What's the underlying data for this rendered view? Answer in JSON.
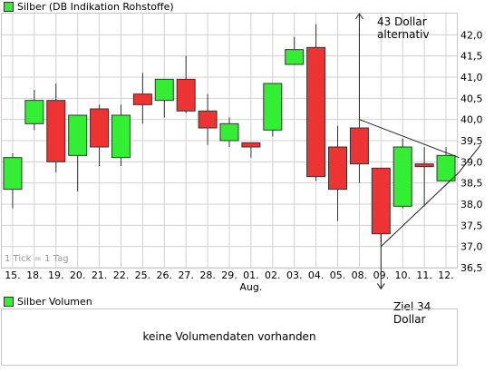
{
  "price_legend": "Silber (DB Indikation Rohstoffe)",
  "volume_legend": "Silber Volumen",
  "volume_message": "keine Volumendaten vorhanden",
  "tick_note": "1 Tick = 1 Tag",
  "annotation_up": [
    "43 Dollar",
    "alternativ"
  ],
  "annotation_down": [
    "Ziel 34",
    "Dollar"
  ],
  "colors": {
    "up": "#33ee33",
    "down": "#ee3333",
    "grid": "#d0d0d0",
    "border": "#c8c8c8"
  },
  "chart_data": {
    "type": "candlestick",
    "title": "Silber (DB Indikation Rohstoffe)",
    "categories": [
      "15.",
      "18.",
      "19.",
      "20.",
      "21.",
      "22.",
      "25.",
      "26.",
      "27.",
      "28.",
      "29.",
      "01.",
      "02.",
      "03.",
      "04.",
      "05.",
      "08.",
      "09.",
      "10.",
      "11.",
      "12."
    ],
    "x_sublabel": {
      "index": 11,
      "text": "Aug."
    },
    "ylim": [
      36.5,
      42.5
    ],
    "yticks": [
      "42,0",
      "41,5",
      "41,0",
      "40,5",
      "40,0",
      "39,5",
      "39,0",
      "38,5",
      "38,0",
      "37,5",
      "37,0",
      "36,5"
    ],
    "grid": true,
    "legend": "top-left",
    "candles": [
      {
        "open": 38.35,
        "close": 39.1,
        "high": 39.2,
        "low": 37.9
      },
      {
        "open": 39.9,
        "close": 40.45,
        "high": 40.7,
        "low": 39.75
      },
      {
        "open": 40.45,
        "close": 39.0,
        "high": 40.85,
        "low": 38.75
      },
      {
        "open": 39.15,
        "close": 40.1,
        "high": 40.1,
        "low": 38.3
      },
      {
        "open": 40.25,
        "close": 39.35,
        "high": 40.35,
        "low": 38.9
      },
      {
        "open": 39.1,
        "close": 40.1,
        "high": 40.35,
        "low": 38.9
      },
      {
        "open": 40.6,
        "close": 40.35,
        "high": 41.1,
        "low": 39.9
      },
      {
        "open": 40.45,
        "close": 40.95,
        "high": 40.95,
        "low": 40.05
      },
      {
        "open": 40.95,
        "close": 40.2,
        "high": 41.5,
        "low": 40.15
      },
      {
        "open": 40.2,
        "close": 39.8,
        "high": 40.6,
        "low": 39.4
      },
      {
        "open": 39.5,
        "close": 39.9,
        "high": 40.05,
        "low": 39.35
      },
      {
        "open": 39.45,
        "close": 39.35,
        "high": 39.45,
        "low": 39.1
      },
      {
        "open": 39.75,
        "close": 40.85,
        "high": 40.85,
        "low": 39.6
      },
      {
        "open": 41.3,
        "close": 41.65,
        "high": 41.95,
        "low": 41.3
      },
      {
        "open": 41.7,
        "close": 38.65,
        "high": 42.25,
        "low": 38.55
      },
      {
        "open": 39.35,
        "close": 38.35,
        "high": 39.85,
        "low": 37.6
      },
      {
        "open": 39.8,
        "close": 38.95,
        "high": 40.0,
        "low": 38.5
      },
      {
        "open": 38.85,
        "close": 37.3,
        "high": 38.85,
        "low": 37.1
      },
      {
        "open": 37.95,
        "close": 39.35,
        "high": 39.55,
        "low": 37.9
      },
      {
        "open": 38.95,
        "close": 38.9,
        "high": 39.35,
        "low": 37.95
      },
      {
        "open": 38.55,
        "close": 39.15,
        "high": 39.35,
        "low": 38.55
      }
    ],
    "annotations": {
      "triangle_upper": [
        [
          16.0,
          40.0
        ],
        [
          20.6,
          39.1
        ]
      ],
      "triangle_lower": [
        [
          17.0,
          37.0
        ],
        [
          20.6,
          38.75
        ],
        [
          21.6,
          39.4
        ]
      ],
      "arrow_up": {
        "x_index": 16.0,
        "from": 40.0,
        "to": 42.5,
        "label": "43 Dollar alternativ"
      },
      "arrow_down": {
        "x_index": 17.0,
        "from": 37.3,
        "to": 36.0,
        "label": "Ziel 34 Dollar"
      }
    }
  }
}
